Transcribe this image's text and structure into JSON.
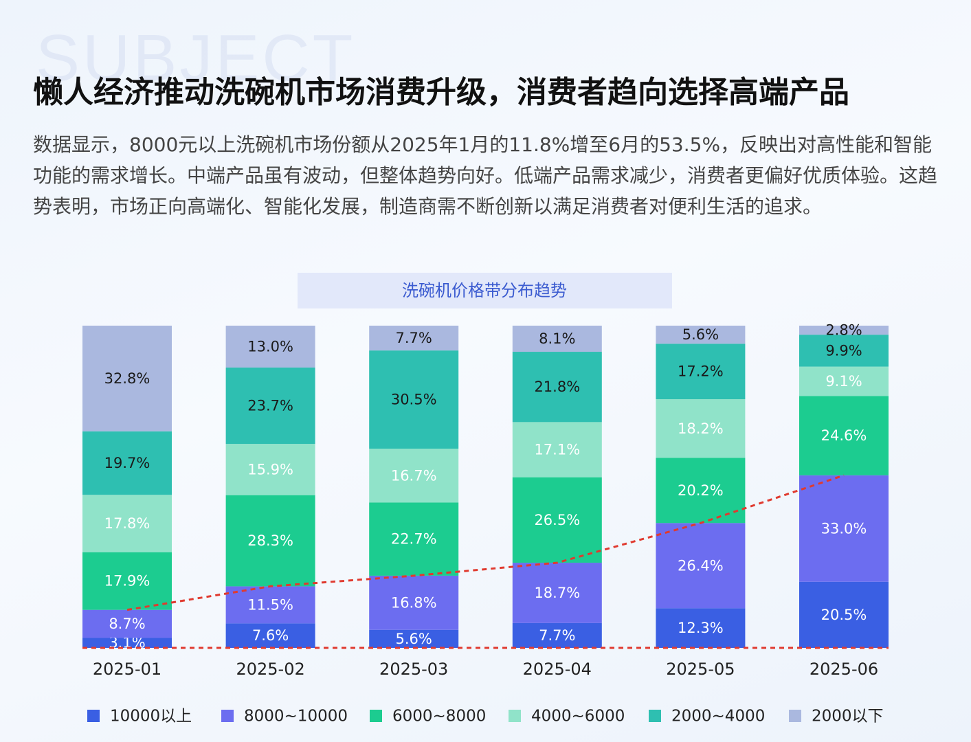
{
  "watermark": "SUBJECT",
  "header": {
    "title": "懒人经济推动洗碗机市场消费升级，消费者趋向选择高端产品",
    "description": "数据显示，8000元以上洗碗机市场份额从2025年1月的11.8%增至6月的53.5%，反映出对高性能和智能功能的需求增长。中端产品虽有波动，但整体趋势向好。低端产品需求减少，消费者更偏好优质体验。这趋势表明，市场正向高端化、智能化发展，制造商需不断创新以满足消费者对便利生活的追求。"
  },
  "chart_data": {
    "type": "stacked_bar",
    "title": "洗碗机价格带分布趋势",
    "categories": [
      "2025-01",
      "2025-02",
      "2025-03",
      "2025-04",
      "2025-05",
      "2025-06"
    ],
    "series": [
      {
        "name": "10000以上",
        "color": "#3a5fe3",
        "label_color": "#ffffff",
        "values": [
          3.1,
          7.6,
          5.6,
          7.7,
          12.3,
          20.5
        ],
        "value_labels": [
          "3.1%",
          "7.6%",
          "5.6%",
          "7.7%",
          "12.3%",
          "20.5%"
        ]
      },
      {
        "name": "8000~10000",
        "color": "#6c6df0",
        "label_color": "#ffffff",
        "values": [
          8.7,
          11.5,
          16.8,
          18.7,
          26.4,
          33.0
        ],
        "value_labels": [
          "8.7%",
          "11.5%",
          "16.8%",
          "18.7%",
          "26.4%",
          "33.0%"
        ]
      },
      {
        "name": "6000~8000",
        "color": "#1ccc90",
        "label_color": "#ffffff",
        "values": [
          17.9,
          28.3,
          22.7,
          26.5,
          20.2,
          24.6
        ],
        "value_labels": [
          "17.9%",
          "28.3%",
          "22.7%",
          "26.5%",
          "20.2%",
          "24.6%"
        ]
      },
      {
        "name": "4000~6000",
        "color": "#90e3c9",
        "label_color": "#ffffff",
        "values": [
          17.8,
          15.9,
          16.7,
          17.1,
          18.2,
          9.1
        ],
        "value_labels": [
          "17.8%",
          "15.9%",
          "16.7%",
          "17.1%",
          "18.2%",
          "9.1%"
        ]
      },
      {
        "name": "2000~4000",
        "color": "#2ebfb1",
        "label_color": "#1a1a1a",
        "values": [
          19.7,
          23.7,
          30.5,
          21.8,
          17.2,
          9.9
        ],
        "value_labels": [
          "19.7%",
          "23.7%",
          "30.5%",
          "21.8%",
          "17.2%",
          "9.9%"
        ]
      },
      {
        "name": "2000以下",
        "color": "#aab8df",
        "label_color": "#1a1a1a",
        "values": [
          32.8,
          13.0,
          7.7,
          8.1,
          5.6,
          2.8
        ],
        "value_labels": [
          "32.8%",
          "13.0%",
          "7.7%",
          "8.1%",
          "5.6%",
          "2.8%"
        ]
      }
    ],
    "trend_color": "#e03a2f",
    "legend": "bottom"
  }
}
